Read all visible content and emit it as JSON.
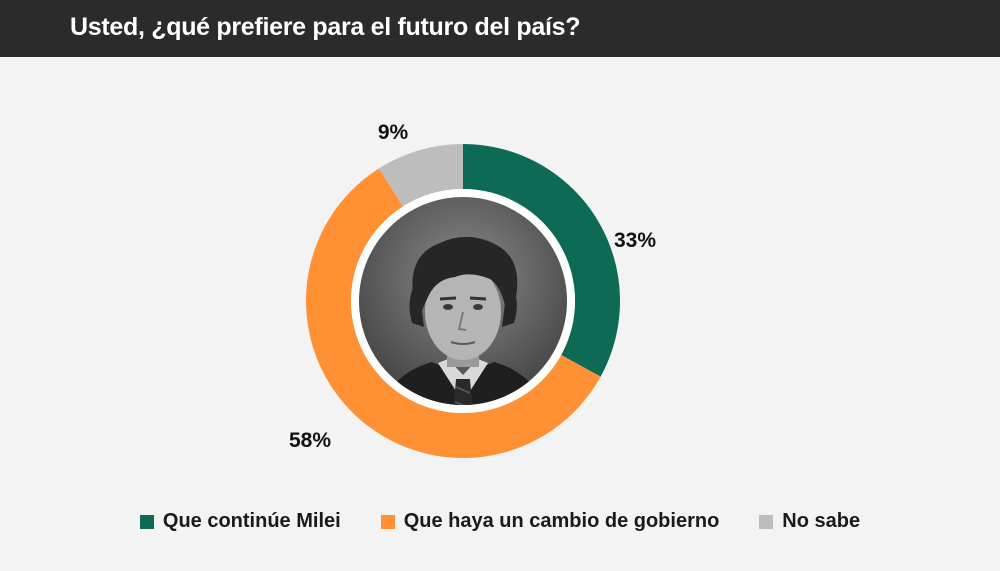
{
  "header": {
    "title": "Usted, ¿qué prefiere para el futuro del país?"
  },
  "colors": {
    "header_bg": "#2b2b2b",
    "background": "#f3f3f3"
  },
  "chart_data": {
    "type": "pie",
    "variant": "donut",
    "center_image": "portrait-photo",
    "categories": [
      "Que continúe Milei",
      "Que haya un cambio de gobierno",
      "No sabe"
    ],
    "values": [
      33,
      58,
      9
    ],
    "labels": [
      "33%",
      "58%",
      "9%"
    ],
    "colors": [
      "#0d6b55",
      "#ff9033",
      "#bdbdbd"
    ],
    "legend": "bottom"
  }
}
